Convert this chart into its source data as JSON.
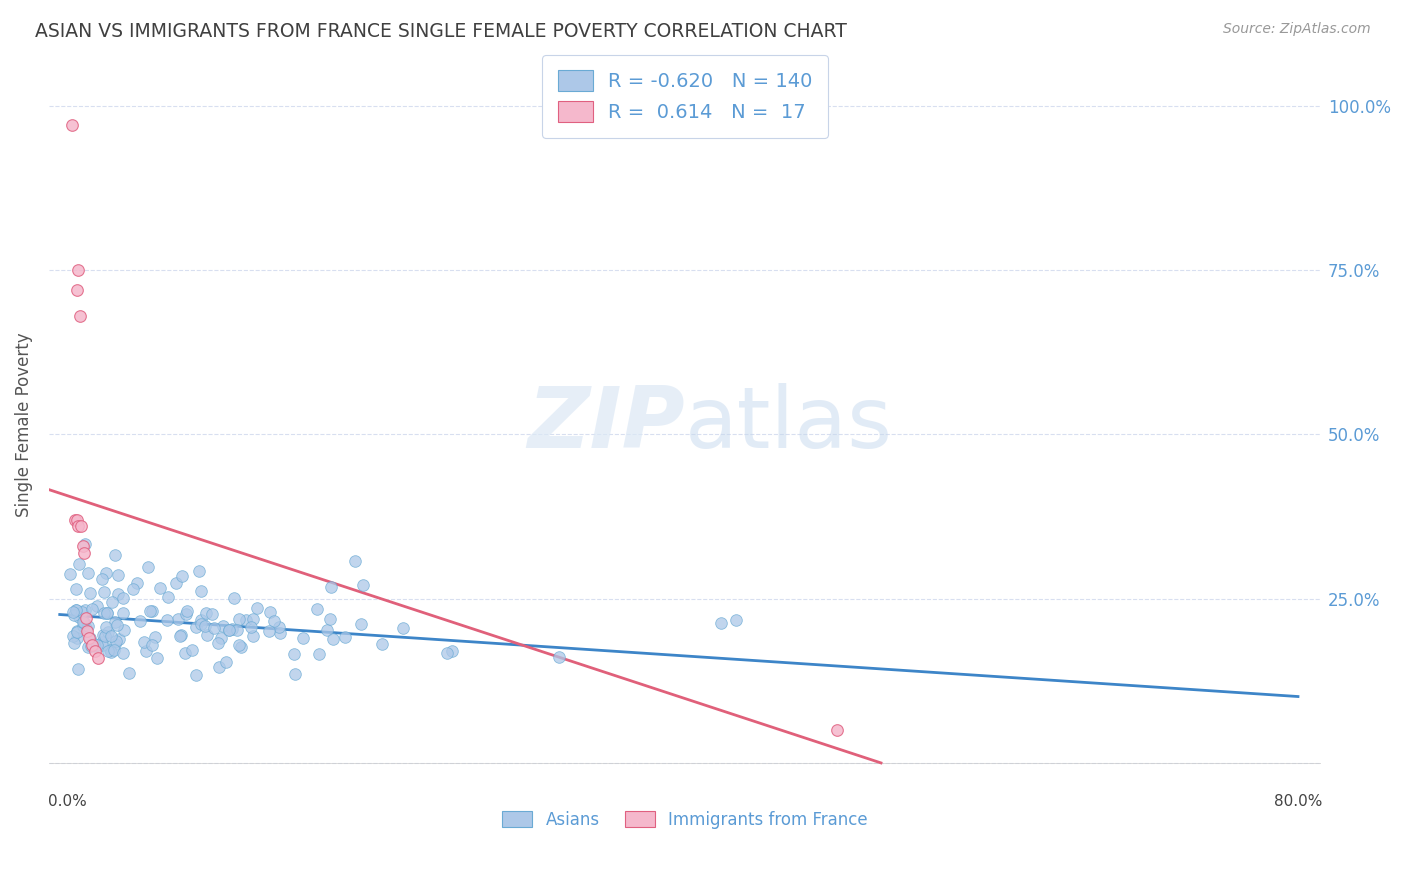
{
  "title": "ASIAN VS IMMIGRANTS FROM FRANCE SINGLE FEMALE POVERTY CORRELATION CHART",
  "source": "Source: ZipAtlas.com",
  "ylabel": "Single Female Poverty",
  "watermark_zip": "ZIP",
  "watermark_atlas": "atlas",
  "legend": {
    "asian_color": "#adc8e8",
    "asian_edge": "#6aaad4",
    "france_color": "#f5b8cc",
    "france_edge": "#e06080",
    "asian_R": "-0.620",
    "asian_N": "140",
    "france_R": "0.614",
    "france_N": "17"
  },
  "asian_trend_color": "#3d85c8",
  "france_trend_color": "#e0607a",
  "dashed_color": "#d0a0b0",
  "background_color": "#ffffff",
  "grid_color": "#d8dff0",
  "title_color": "#404040",
  "right_tick_color": "#5b9bd5",
  "source_color": "#999999"
}
